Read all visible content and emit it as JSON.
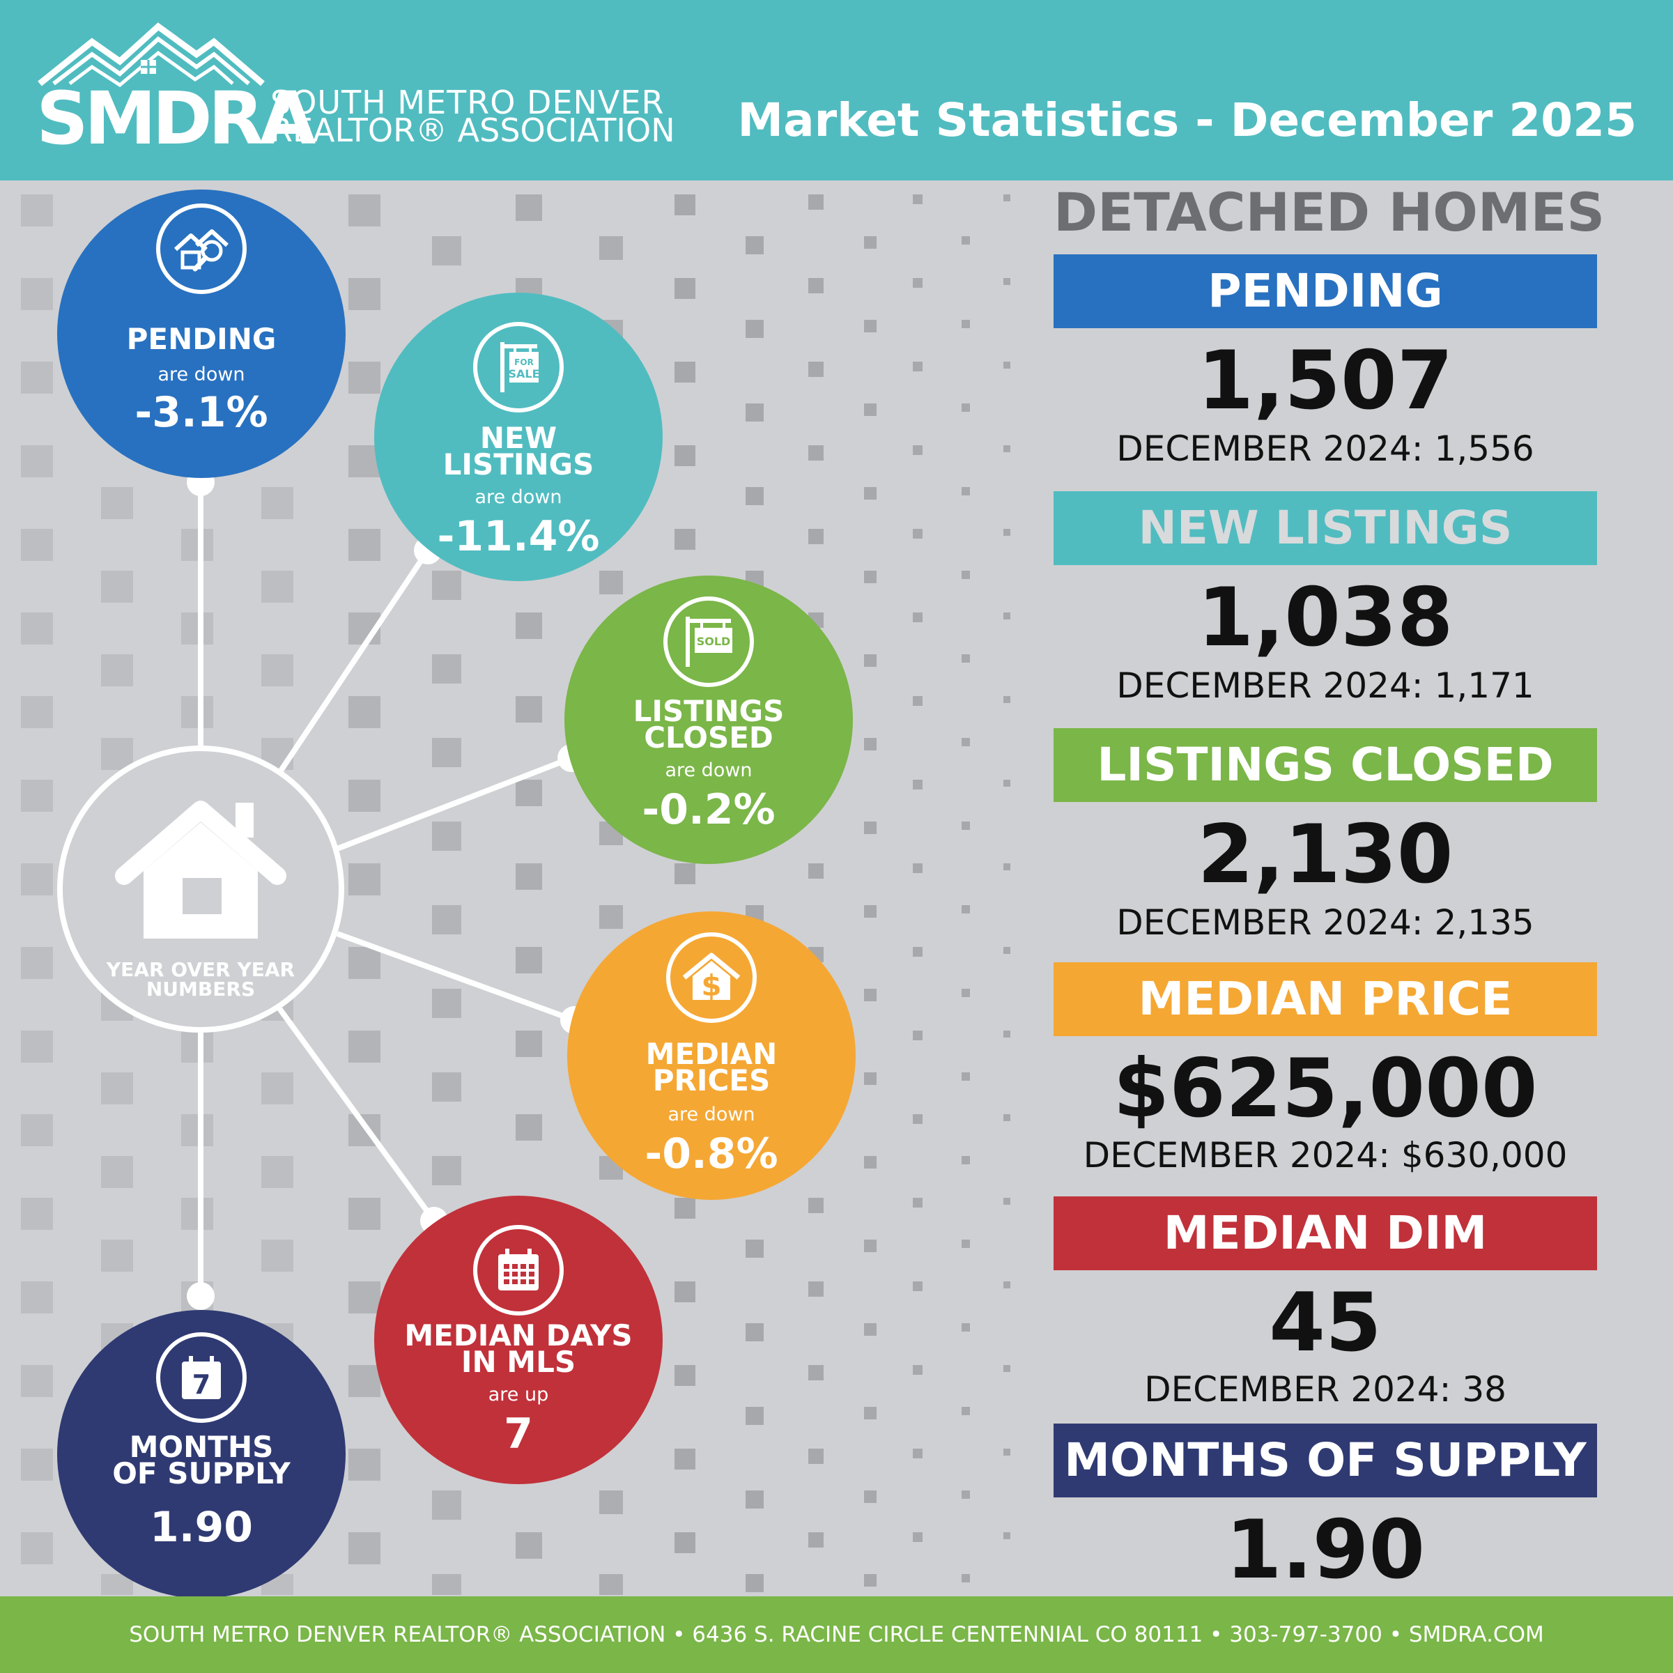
{
  "header": {
    "logo_abbr": "SMDRA",
    "logo_line1": "SOUTH METRO DENVER",
    "logo_line2": "REALTOR® ASSOCIATION",
    "title": "Market Statistics - December 2025"
  },
  "colors": {
    "teal": "#50bcc0",
    "blue": "#2871c0",
    "green": "#7ab648",
    "orange": "#f5a733",
    "red": "#c1313a",
    "navy": "#2f3a73"
  },
  "hub": {
    "label_line1": "YEAR OVER YEAR",
    "label_line2": "NUMBERS",
    "icon": "house-icon"
  },
  "bubbles": {
    "pending": {
      "label1": "PENDING",
      "label2": "",
      "direction": "are down",
      "value": "-3.1%",
      "icon": "house-search-icon"
    },
    "new_listings": {
      "label1": "NEW",
      "label2": "LISTINGS",
      "direction": "are down",
      "value": "-11.4%",
      "icon": "for-sale-sign-icon",
      "icon_text1": "FOR",
      "icon_text2": "SALE"
    },
    "listings_closed": {
      "label1": "LISTINGS",
      "label2": "CLOSED",
      "direction": "are down",
      "value": "-0.2%",
      "icon": "sold-sign-icon",
      "icon_text": "SOLD"
    },
    "median_prices": {
      "label1": "MEDIAN",
      "label2": "PRICES",
      "direction": "are down",
      "value": "-0.8%",
      "icon": "house-dollar-icon",
      "icon_text": "$"
    },
    "median_days": {
      "label1": "MEDIAN DAYS",
      "label2": "IN MLS",
      "direction": "are up",
      "value": "7",
      "icon": "calendar-grid-icon"
    },
    "months_supply": {
      "label1": "MONTHS",
      "label2": "OF SUPPLY",
      "direction": "",
      "value": "1.90",
      "icon": "calendar-7-icon",
      "icon_text": "7"
    }
  },
  "panel": {
    "title": "DETACHED HOMES",
    "stats": [
      {
        "label": "PENDING",
        "value": "1,507",
        "previous": "DECEMBER 2024: 1,556"
      },
      {
        "label": "NEW LISTINGS",
        "value": "1,038",
        "previous": "DECEMBER 2024: 1,171"
      },
      {
        "label": "LISTINGS CLOSED",
        "value": "2,130",
        "previous": "DECEMBER 2024: 2,135"
      },
      {
        "label": "MEDIAN PRICE",
        "value": "$625,000",
        "previous": "DECEMBER 2024: $630,000"
      },
      {
        "label": "MEDIAN DIM",
        "value": "45",
        "previous": "DECEMBER 2024: 38"
      },
      {
        "label": "MONTHS OF SUPPLY",
        "value": "1.90",
        "previous": ""
      }
    ]
  },
  "footer": {
    "text": "SOUTH METRO DENVER REALTOR® ASSOCIATION • 6436 S. RACINE CIRCLE CENTENNIAL CO 80111 • 303-797-3700 • SMDRA.COM"
  }
}
